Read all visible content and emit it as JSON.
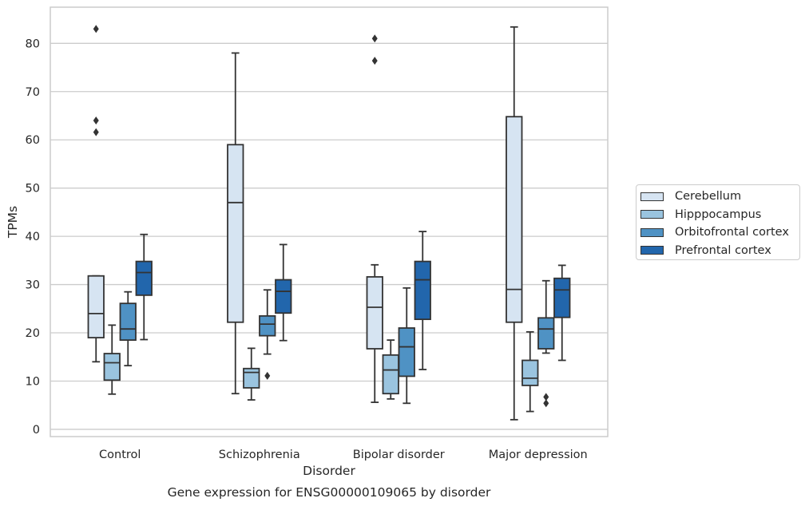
{
  "chart_data": {
    "type": "box",
    "title": "Gene expression for ENSG00000109065 by disorder",
    "xlabel": "Disorder",
    "ylabel": "TPMs",
    "ylim": [
      -1.5,
      87.5
    ],
    "yticks": [
      0,
      10,
      20,
      30,
      40,
      50,
      60,
      70,
      80
    ],
    "categories": [
      "Control",
      "Schizophrenia",
      "Bipolar disorder",
      "Major depression"
    ],
    "grid": true,
    "legend_position": "right",
    "series": [
      {
        "name": "Cerebellum",
        "color": "#d6e4f2",
        "boxes": [
          {
            "whisker_low": 14,
            "q1": 19,
            "median": 24,
            "q3": 31.8,
            "whisker_high": 31.8,
            "outliers": [
              83,
              64,
              61.6
            ]
          },
          {
            "whisker_low": 7.4,
            "q1": 22.2,
            "median": 47,
            "q3": 59,
            "whisker_high": 78,
            "outliers": []
          },
          {
            "whisker_low": 5.6,
            "q1": 16.7,
            "median": 25.3,
            "q3": 31.6,
            "whisker_high": 34.1,
            "outliers": [
              81,
              76.4
            ]
          },
          {
            "whisker_low": 2,
            "q1": 22.2,
            "median": 29,
            "q3": 64.8,
            "whisker_high": 83.4,
            "outliers": []
          }
        ]
      },
      {
        "name": "Hipppocampus",
        "color": "#9ac4df",
        "boxes": [
          {
            "whisker_low": 7.3,
            "q1": 10.2,
            "median": 13.8,
            "q3": 15.7,
            "whisker_high": 21.6,
            "outliers": []
          },
          {
            "whisker_low": 6.1,
            "q1": 8.6,
            "median": 11.8,
            "q3": 12.6,
            "whisker_high": 16.8,
            "outliers": []
          },
          {
            "whisker_low": 6.3,
            "q1": 7.4,
            "median": 12.3,
            "q3": 15.4,
            "whisker_high": 18.5,
            "outliers": []
          },
          {
            "whisker_low": 3.7,
            "q1": 9.1,
            "median": 10.6,
            "q3": 14.3,
            "whisker_high": 20.2,
            "outliers": []
          }
        ]
      },
      {
        "name": "Orbitofrontal cortex",
        "color": "#4f92c4",
        "boxes": [
          {
            "whisker_low": 13.2,
            "q1": 18.5,
            "median": 20.8,
            "q3": 26.1,
            "whisker_high": 28.5,
            "outliers": []
          },
          {
            "whisker_low": 15.6,
            "q1": 19.4,
            "median": 21.8,
            "q3": 23.5,
            "whisker_high": 28.9,
            "outliers": [
              11.1
            ]
          },
          {
            "whisker_low": 5.4,
            "q1": 11,
            "median": 17.1,
            "q3": 21,
            "whisker_high": 29.3,
            "outliers": []
          },
          {
            "whisker_low": 15.8,
            "q1": 16.7,
            "median": 20.8,
            "q3": 23.1,
            "whisker_high": 30.8,
            "outliers": [
              6.7,
              5.4
            ]
          }
        ]
      },
      {
        "name": "Prefrontal cortex",
        "color": "#2266ac",
        "boxes": [
          {
            "whisker_low": 18.6,
            "q1": 27.8,
            "median": 32.5,
            "q3": 34.8,
            "whisker_high": 40.4,
            "outliers": []
          },
          {
            "whisker_low": 18.4,
            "q1": 24.1,
            "median": 28.6,
            "q3": 31,
            "whisker_high": 38.3,
            "outliers": []
          },
          {
            "whisker_low": 12.4,
            "q1": 22.8,
            "median": 31,
            "q3": 34.8,
            "whisker_high": 41,
            "outliers": []
          },
          {
            "whisker_low": 14.3,
            "q1": 23.2,
            "median": 28.9,
            "q3": 31.3,
            "whisker_high": 34,
            "outliers": []
          }
        ]
      }
    ]
  }
}
